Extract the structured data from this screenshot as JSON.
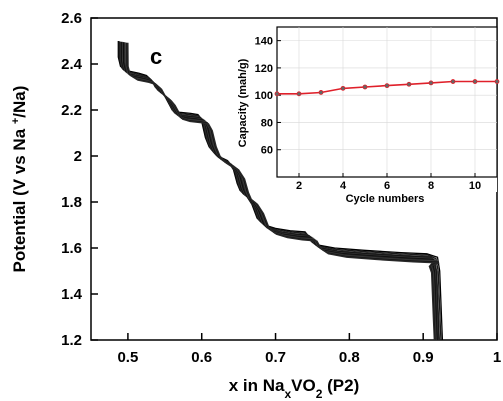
{
  "chart_data": [
    {
      "type": "line",
      "panel_label": "c",
      "xlabel_parts": {
        "pre": "x in Na",
        "sub1": "x",
        "mid": "VO",
        "sub2": "2",
        "post": " (P2)"
      },
      "ylabel_parts": {
        "pre": "Potential (V vs Na ",
        "sup": "+",
        "post": "/Na)"
      },
      "xlim": [
        0.45,
        1.0
      ],
      "ylim": [
        1.2,
        2.6
      ],
      "xticks": [
        0.5,
        0.6,
        0.7,
        0.8,
        0.9,
        1
      ],
      "xtick_labels": [
        "0.5",
        "0.6",
        "0.7",
        "0.8",
        "0.9",
        "1"
      ],
      "yticks": [
        1.2,
        1.4,
        1.6,
        1.8,
        2.0,
        2.2,
        2.4,
        2.6
      ],
      "ytick_labels": [
        "1.2",
        "1.4",
        "1.6",
        "1.8",
        "2",
        "2.2",
        "2.4",
        "2.6"
      ],
      "series_colors": [
        "#000000",
        "#1a1a1a",
        "#2b2b2b",
        "#111111",
        "#333333",
        "#0d0d0d",
        "#222222",
        "#3a3a3a",
        "#151515",
        "#282828"
      ],
      "series": [
        {
          "x_offset": 0.0,
          "y_offset": 0.0,
          "x_end": 0.926
        },
        {
          "x_offset": 0.002,
          "y_offset": -0.006,
          "x_end": 0.924
        },
        {
          "x_offset": 0.004,
          "y_offset": -0.012,
          "x_end": 0.922
        },
        {
          "x_offset": 0.006,
          "y_offset": -0.016,
          "x_end": 0.921
        },
        {
          "x_offset": 0.008,
          "y_offset": -0.02,
          "x_end": 0.92
        },
        {
          "x_offset": 0.01,
          "y_offset": -0.024,
          "x_end": 0.919
        },
        {
          "x_offset": 0.012,
          "y_offset": -0.028,
          "x_end": 0.918
        },
        {
          "x_offset": 0.014,
          "y_offset": -0.032,
          "x_end": 0.917
        },
        {
          "x_offset": 0.016,
          "y_offset": -0.036,
          "x_end": 0.916
        },
        {
          "x_offset": 0.018,
          "y_offset": -0.04,
          "x_end": 0.915
        }
      ],
      "base_curve": [
        [
          0.487,
          2.5
        ],
        [
          0.487,
          2.43
        ],
        [
          0.49,
          2.39
        ],
        [
          0.5,
          2.37
        ],
        [
          0.515,
          2.36
        ],
        [
          0.525,
          2.35
        ],
        [
          0.532,
          2.33
        ],
        [
          0.537,
          2.3
        ],
        [
          0.545,
          2.28
        ],
        [
          0.55,
          2.26
        ],
        [
          0.555,
          2.23
        ],
        [
          0.56,
          2.2
        ],
        [
          0.57,
          2.19
        ],
        [
          0.585,
          2.185
        ],
        [
          0.595,
          2.18
        ],
        [
          0.6,
          2.15
        ],
        [
          0.605,
          2.08
        ],
        [
          0.61,
          2.04
        ],
        [
          0.618,
          2.01
        ],
        [
          0.625,
          1.995
        ],
        [
          0.635,
          1.98
        ],
        [
          0.643,
          1.94
        ],
        [
          0.648,
          1.88
        ],
        [
          0.652,
          1.85
        ],
        [
          0.66,
          1.83
        ],
        [
          0.668,
          1.79
        ],
        [
          0.675,
          1.73
        ],
        [
          0.685,
          1.7
        ],
        [
          0.7,
          1.685
        ],
        [
          0.72,
          1.675
        ],
        [
          0.74,
          1.67
        ],
        [
          0.745,
          1.64
        ],
        [
          0.755,
          1.615
        ],
        [
          0.78,
          1.6
        ],
        [
          0.82,
          1.59
        ],
        [
          0.87,
          1.58
        ],
        [
          0.905,
          1.575
        ],
        [
          0.915,
          1.56
        ],
        [
          0.92,
          1.5
        ],
        [
          0.922,
          1.4
        ],
        [
          0.924,
          1.3
        ],
        [
          0.926,
          1.2
        ]
      ]
    },
    {
      "type": "line",
      "role": "inset",
      "xlabel": "Cycle numbers",
      "ylabel": "Capacity (mah/g)",
      "xlim": [
        1,
        11
      ],
      "ylim": [
        40,
        150
      ],
      "xticks": [
        2,
        4,
        6,
        8,
        10
      ],
      "xtick_labels": [
        "2",
        "4",
        "6",
        "8",
        "10"
      ],
      "yticks": [
        60,
        80,
        100,
        120,
        140
      ],
      "ytick_labels": [
        "60",
        "80",
        "100",
        "120",
        "140"
      ],
      "line_color": "#e0202a",
      "x": [
        1,
        2,
        3,
        4,
        5,
        6,
        7,
        8,
        9,
        10,
        11
      ],
      "y": [
        101,
        101,
        102,
        105,
        106,
        107,
        108,
        109,
        110,
        110,
        110
      ]
    }
  ]
}
